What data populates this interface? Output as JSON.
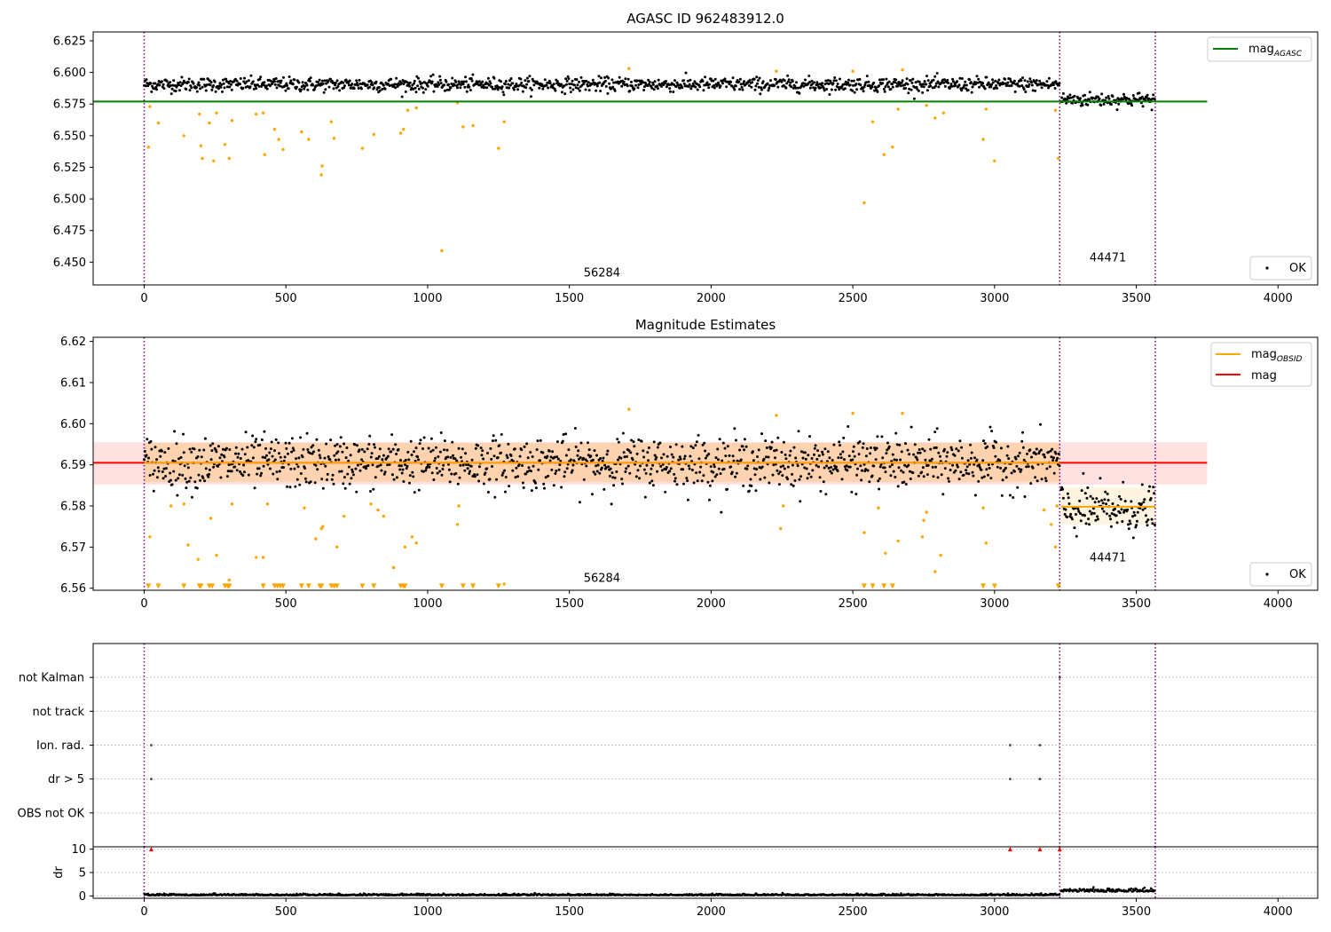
{
  "chart_data": [
    {
      "id": "panel1",
      "type": "scatter",
      "title": "AGASC ID 962483912.0",
      "xlim": [
        -180,
        4140
      ],
      "ylim": [
        6.432,
        6.632
      ],
      "xticks": [
        0,
        500,
        1000,
        1500,
        2000,
        2500,
        3000,
        3500,
        4000
      ],
      "yticks": [
        6.45,
        6.475,
        6.5,
        6.525,
        6.55,
        6.575,
        6.6,
        6.625
      ],
      "ytick_decimals": 3,
      "legend_top": {
        "entries": [
          {
            "label": "mag",
            "sub": "AGASC",
            "color": "#008000"
          }
        ]
      },
      "legend_bottom": {
        "entries": [
          {
            "label": "OK",
            "marker": "dot",
            "color": "#000000"
          }
        ]
      },
      "hlines": [
        {
          "y": 6.577,
          "x0": -180,
          "x1": 3750,
          "color": "#008000"
        }
      ],
      "vlines": [
        0,
        3230,
        3567
      ],
      "vline_color": "#800080",
      "segments": [
        {
          "x0": 0,
          "x1": 3230,
          "center": 6.5905,
          "spread": 0.0028,
          "label": "56284",
          "label_x": 1615,
          "label_y": 6.4385
        },
        {
          "x0": 3235,
          "x1": 3567,
          "center": 6.5785,
          "spread": 0.0028,
          "label": "44471",
          "label_x": 3400,
          "label_y": 6.4505
        }
      ],
      "outliers": [
        [
          15,
          6.541
        ],
        [
          20,
          6.573
        ],
        [
          50,
          6.56
        ],
        [
          140,
          6.55
        ],
        [
          195,
          6.567
        ],
        [
          200,
          6.542
        ],
        [
          205,
          6.532
        ],
        [
          230,
          6.56
        ],
        [
          245,
          6.53
        ],
        [
          255,
          6.568
        ],
        [
          285,
          6.543
        ],
        [
          300,
          6.532
        ],
        [
          310,
          6.562
        ],
        [
          395,
          6.567
        ],
        [
          420,
          6.568
        ],
        [
          425,
          6.535
        ],
        [
          460,
          6.555
        ],
        [
          475,
          6.547
        ],
        [
          490,
          6.539
        ],
        [
          555,
          6.553
        ],
        [
          580,
          6.547
        ],
        [
          625,
          6.519
        ],
        [
          628,
          6.526
        ],
        [
          660,
          6.561
        ],
        [
          670,
          6.548
        ],
        [
          770,
          6.54
        ],
        [
          810,
          6.551
        ],
        [
          905,
          6.552
        ],
        [
          915,
          6.555
        ],
        [
          930,
          6.57
        ],
        [
          960,
          6.572
        ],
        [
          1050,
          6.459
        ],
        [
          1105,
          6.576
        ],
        [
          1125,
          6.557
        ],
        [
          1160,
          6.558
        ],
        [
          1250,
          6.54
        ],
        [
          1270,
          6.561
        ],
        [
          1710,
          6.603
        ],
        [
          2230,
          6.601
        ],
        [
          2500,
          6.601
        ],
        [
          2540,
          6.497
        ],
        [
          2570,
          6.561
        ],
        [
          2610,
          6.535
        ],
        [
          2640,
          6.541
        ],
        [
          2660,
          6.571
        ],
        [
          2675,
          6.602
        ],
        [
          2760,
          6.574
        ],
        [
          2790,
          6.564
        ],
        [
          2820,
          6.568
        ],
        [
          2960,
          6.547
        ],
        [
          2970,
          6.571
        ],
        [
          3000,
          6.53
        ],
        [
          3215,
          6.57
        ],
        [
          3225,
          6.532
        ]
      ]
    },
    {
      "id": "panel2",
      "type": "scatter",
      "title": "Magnitude Estimates",
      "xlim": [
        -180,
        4140
      ],
      "ylim": [
        6.5595,
        6.621
      ],
      "xticks": [
        0,
        500,
        1000,
        1500,
        2000,
        2500,
        3000,
        3500,
        4000
      ],
      "yticks": [
        6.56,
        6.57,
        6.58,
        6.59,
        6.6,
        6.61,
        6.62
      ],
      "ytick_decimals": 2,
      "legend_top": {
        "entries": [
          {
            "label": "mag",
            "sub": "OBSID",
            "color": "#ffa500"
          },
          {
            "label": "mag",
            "sub": "",
            "color": "#ff0000"
          }
        ]
      },
      "legend_bottom": {
        "entries": [
          {
            "label": "OK",
            "marker": "dot",
            "color": "#000000"
          }
        ]
      },
      "bands": [
        {
          "x0": -180,
          "x1": 3750,
          "y0": 6.5852,
          "y1": 6.5955,
          "color": "#ffb3b3",
          "opacity": 0.4
        },
        {
          "x0": 0,
          "x1": 3230,
          "y0": 6.5858,
          "y1": 6.5953,
          "color": "#ffa500",
          "opacity": 0.22
        },
        {
          "x0": 3235,
          "x1": 3567,
          "y0": 6.5755,
          "y1": 6.5845,
          "color": "#ffd27f",
          "opacity": 0.25
        }
      ],
      "hlines": [
        {
          "y": 6.5905,
          "x0": -180,
          "x1": 3750,
          "color": "#ff0000"
        },
        {
          "y": 6.5905,
          "x0": 0,
          "x1": 3230,
          "color": "#ffa500"
        },
        {
          "y": 6.5798,
          "x0": 3235,
          "x1": 3567,
          "color": "#ffa500"
        }
      ],
      "vlines": [
        0,
        3230,
        3567
      ],
      "vline_color": "#800080",
      "segments": [
        {
          "x0": 0,
          "x1": 3230,
          "center": 6.5905,
          "spread": 0.0032,
          "label": "56284",
          "label_x": 1615,
          "label_y": 6.5615
        },
        {
          "x0": 3235,
          "x1": 3567,
          "center": 6.579,
          "spread": 0.003,
          "label": "44471",
          "label_x": 3400,
          "label_y": 6.5665
        }
      ],
      "outliers": [
        [
          20,
          6.5725
        ],
        [
          95,
          6.58
        ],
        [
          140,
          6.5805
        ],
        [
          155,
          6.5705
        ],
        [
          190,
          6.567
        ],
        [
          235,
          6.577
        ],
        [
          255,
          6.568
        ],
        [
          300,
          6.562
        ],
        [
          310,
          6.5805
        ],
        [
          395,
          6.5675
        ],
        [
          420,
          6.5675
        ],
        [
          435,
          6.5805
        ],
        [
          565,
          6.5795
        ],
        [
          605,
          6.572
        ],
        [
          625,
          6.5745
        ],
        [
          630,
          6.575
        ],
        [
          680,
          6.57
        ],
        [
          705,
          6.5775
        ],
        [
          800,
          6.5805
        ],
        [
          825,
          6.579
        ],
        [
          845,
          6.5775
        ],
        [
          880,
          6.565
        ],
        [
          920,
          6.57
        ],
        [
          945,
          6.5725
        ],
        [
          960,
          6.571
        ],
        [
          1105,
          6.5755
        ],
        [
          1110,
          6.58
        ],
        [
          1270,
          6.561
        ],
        [
          1710,
          6.6035
        ],
        [
          2230,
          6.602
        ],
        [
          2245,
          6.5745
        ],
        [
          2255,
          6.58
        ],
        [
          2500,
          6.6025
        ],
        [
          2540,
          6.5735
        ],
        [
          2590,
          6.5795
        ],
        [
          2615,
          6.5685
        ],
        [
          2660,
          6.5715
        ],
        [
          2675,
          6.6025
        ],
        [
          2745,
          6.5725
        ],
        [
          2750,
          6.5765
        ],
        [
          2760,
          6.5785
        ],
        [
          2790,
          6.564
        ],
        [
          2810,
          6.568
        ],
        [
          2960,
          6.5795
        ],
        [
          2970,
          6.571
        ],
        [
          3175,
          6.579
        ],
        [
          3200,
          6.5755
        ],
        [
          3215,
          6.57
        ],
        [
          3220,
          6.58
        ]
      ],
      "triangles_y": 6.5605,
      "triangles_x": [
        15,
        50,
        140,
        195,
        200,
        230,
        240,
        285,
        295,
        300,
        420,
        460,
        470,
        480,
        490,
        555,
        580,
        620,
        625,
        660,
        670,
        680,
        770,
        810,
        905,
        915,
        920,
        1050,
        1125,
        1160,
        1250,
        2540,
        2570,
        2610,
        2640,
        2960,
        3000,
        3225
      ]
    },
    {
      "id": "panel3",
      "type": "scatter",
      "xlim": [
        -180,
        4140
      ],
      "categories": [
        "not Kalman",
        "not track",
        "Ion. rad.",
        "dr > 5",
        "OBS not OK"
      ],
      "xticks": [],
      "vlines": [
        0,
        3230,
        3567
      ],
      "vline_color": "#800080",
      "points": [
        {
          "x": 3230,
          "cat": "not Kalman"
        },
        {
          "x": 25,
          "cat": "Ion. rad."
        },
        {
          "x": 3055,
          "cat": "Ion. rad."
        },
        {
          "x": 3160,
          "cat": "Ion. rad."
        },
        {
          "x": 25,
          "cat": "dr > 5"
        },
        {
          "x": 3055,
          "cat": "dr > 5"
        },
        {
          "x": 3160,
          "cat": "dr > 5"
        }
      ]
    },
    {
      "id": "panel4",
      "type": "line",
      "ylabel": "dr",
      "xlim": [
        -180,
        4140
      ],
      "ylim": [
        -0.5,
        10.5
      ],
      "xticks": [
        0,
        500,
        1000,
        1500,
        2000,
        2500,
        3000,
        3500,
        4000
      ],
      "yticks": [
        0,
        5,
        10
      ],
      "vlines": [
        0,
        3230,
        3567
      ],
      "vline_color": "#800080",
      "capped_y": 10,
      "capped_x": [
        25,
        3055,
        3160,
        3230
      ],
      "capped_color": "#ff0000",
      "segments": [
        {
          "x0": 0,
          "x1": 3230,
          "center": 0.12,
          "spread": 0.15
        },
        {
          "x0": 3235,
          "x1": 3567,
          "center": 0.9,
          "spread": 0.35
        }
      ]
    }
  ]
}
